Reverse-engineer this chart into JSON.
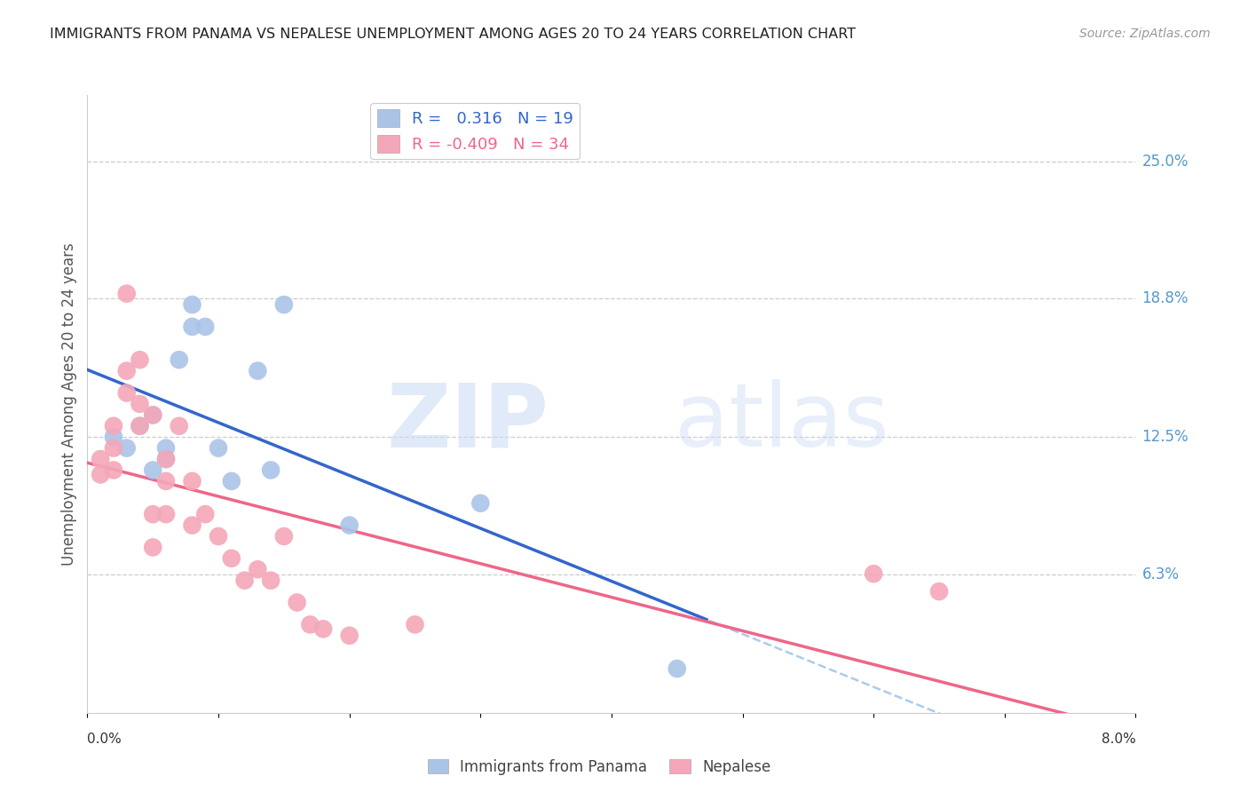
{
  "title": "IMMIGRANTS FROM PANAMA VS NEPALESE UNEMPLOYMENT AMONG AGES 20 TO 24 YEARS CORRELATION CHART",
  "source": "Source: ZipAtlas.com",
  "ylabel": "Unemployment Among Ages 20 to 24 years",
  "xlim": [
    0.0,
    0.08
  ],
  "ylim": [
    0.0,
    0.28
  ],
  "ytick_vals": [
    0.0625,
    0.125,
    0.188,
    0.25
  ],
  "ytick_labels": [
    "6.3%",
    "12.5%",
    "18.8%",
    "25.0%"
  ],
  "xtick_vals": [
    0.0,
    0.01,
    0.02,
    0.03,
    0.04,
    0.05,
    0.06,
    0.07,
    0.08
  ],
  "legend1_label": "R =   0.316   N = 19",
  "legend2_label": "R = -0.409   N = 34",
  "series1_color": "#aac4e8",
  "series2_color": "#f4a7b8",
  "line1_color": "#3366cc",
  "line2_color": "#ee6688",
  "dashed_color": "#aaccee",
  "panama_x": [
    0.002,
    0.003,
    0.004,
    0.005,
    0.005,
    0.006,
    0.006,
    0.007,
    0.008,
    0.008,
    0.009,
    0.01,
    0.011,
    0.013,
    0.014,
    0.015,
    0.02,
    0.03,
    0.045
  ],
  "panama_y": [
    0.125,
    0.12,
    0.13,
    0.11,
    0.135,
    0.115,
    0.12,
    0.16,
    0.175,
    0.185,
    0.175,
    0.12,
    0.105,
    0.155,
    0.11,
    0.185,
    0.085,
    0.095,
    0.02
  ],
  "nepal_x": [
    0.001,
    0.001,
    0.002,
    0.002,
    0.002,
    0.003,
    0.003,
    0.003,
    0.004,
    0.004,
    0.004,
    0.005,
    0.005,
    0.005,
    0.006,
    0.006,
    0.006,
    0.007,
    0.008,
    0.008,
    0.009,
    0.01,
    0.011,
    0.012,
    0.013,
    0.014,
    0.015,
    0.016,
    0.017,
    0.018,
    0.02,
    0.025,
    0.06,
    0.065
  ],
  "nepal_y": [
    0.115,
    0.108,
    0.13,
    0.12,
    0.11,
    0.19,
    0.155,
    0.145,
    0.14,
    0.13,
    0.16,
    0.135,
    0.09,
    0.075,
    0.115,
    0.105,
    0.09,
    0.13,
    0.105,
    0.085,
    0.09,
    0.08,
    0.07,
    0.06,
    0.065,
    0.06,
    0.08,
    0.05,
    0.04,
    0.038,
    0.035,
    0.04,
    0.063,
    0.055
  ]
}
